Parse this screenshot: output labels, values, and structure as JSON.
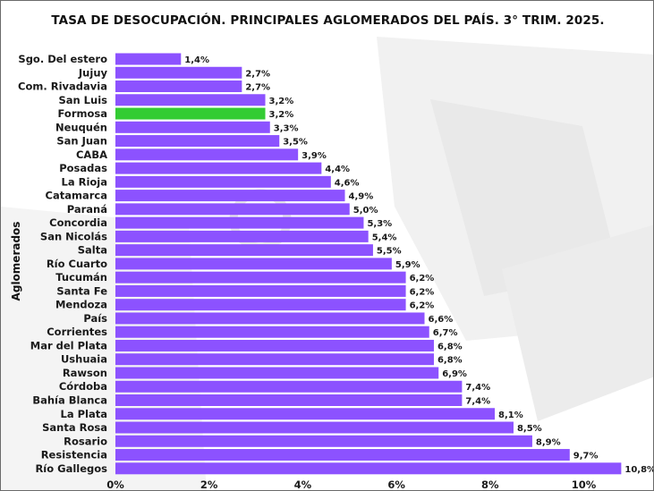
{
  "colors": {
    "bar": "#8c52ff",
    "highlight": "#33cc33",
    "text": "#111111"
  },
  "chart_data": {
    "type": "bar",
    "orientation": "horizontal",
    "title": "TASA DE DESOCUPACIÓN. PRINCIPALES AGLOMERADOS DEL PAÍS. 3° TRIM. 2025.",
    "ylabel": "Aglomerados",
    "xlabel": "",
    "xlim": [
      0,
      10.8
    ],
    "xticks": [
      0,
      2,
      4,
      6,
      8,
      10
    ],
    "xtick_labels": [
      "0%",
      "2%",
      "4%",
      "6%",
      "8%",
      "10%"
    ],
    "grid": false,
    "highlight_category": "Formosa",
    "categories": [
      "Sgo. Del estero",
      "Jujuy",
      "Com. Rivadavia",
      "San Luis",
      "Formosa",
      "Neuquén",
      "San Juan",
      "CABA",
      "Posadas",
      "La Rioja",
      "Catamarca",
      "Paraná",
      "Concordia",
      "San Nicolás",
      "Salta",
      "Río Cuarto",
      "Tucumán",
      "Santa Fe",
      "Mendoza",
      "País",
      "Corrientes",
      "Mar del Plata",
      "Ushuaia",
      "Rawson",
      "Córdoba",
      "Bahía Blanca",
      "La Plata",
      "Santa Rosa",
      "Rosario",
      "Resistencia",
      "Río Gallegos"
    ],
    "values": [
      1.4,
      2.7,
      2.7,
      3.2,
      3.2,
      3.3,
      3.5,
      3.9,
      4.4,
      4.6,
      4.9,
      5.0,
      5.3,
      5.4,
      5.5,
      5.9,
      6.2,
      6.2,
      6.2,
      6.6,
      6.7,
      6.8,
      6.8,
      6.9,
      7.4,
      7.4,
      8.1,
      8.5,
      8.9,
      9.7,
      10.8
    ],
    "data_labels": [
      "1,4%",
      "2,7%",
      "2,7%",
      "3,2%",
      "3,2%",
      "3,3%",
      "3,5%",
      "3,9%",
      "4,4%",
      "4,6%",
      "4,9%",
      "5,0%",
      "5,3%",
      "5,4%",
      "5,5%",
      "5,9%",
      "6,2%",
      "6,2%",
      "6,2%",
      "6,6%",
      "6,7%",
      "6,8%",
      "6,8%",
      "6,9%",
      "7,4%",
      "7,4%",
      "8,1%",
      "8,5%",
      "8,9%",
      "9,7%",
      "10,8%"
    ]
  }
}
